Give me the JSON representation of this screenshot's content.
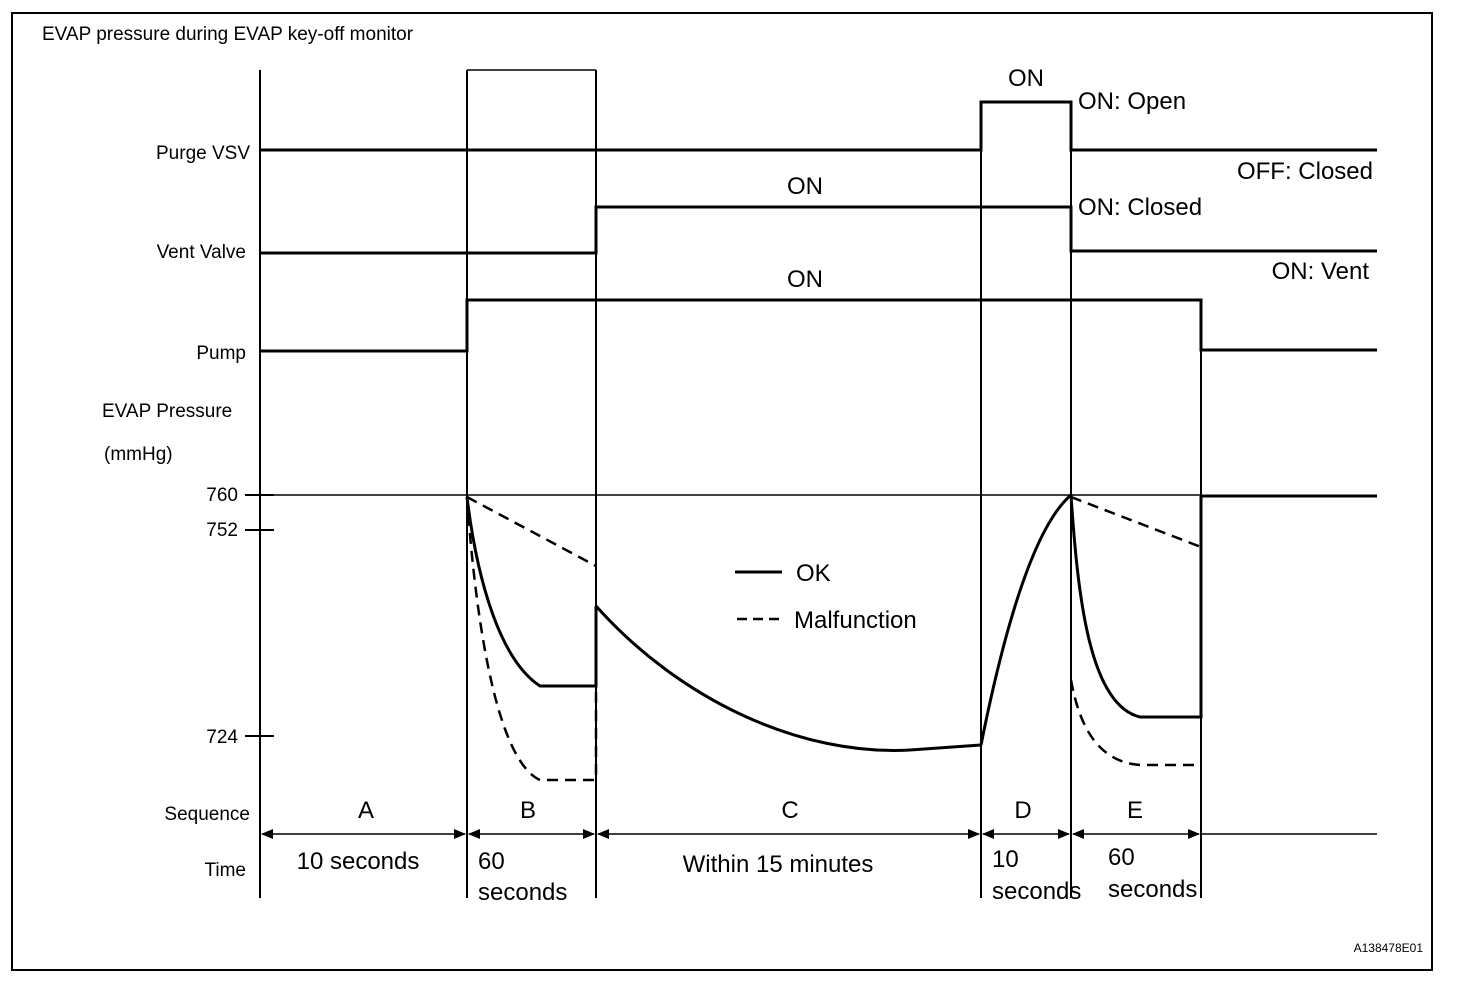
{
  "title": "EVAP pressure during EVAP key-off monitor",
  "signals": {
    "purge_vsv": "Purge VSV",
    "vent_valve": "Vent Valve",
    "pump": "Pump",
    "evap_pressure": "EVAP Pressure",
    "unit": "(mmHg)"
  },
  "y_axis": {
    "ticks": [
      "760",
      "752",
      "724"
    ]
  },
  "state_labels": {
    "purge_on": "ON",
    "purge_on_open": "ON: Open",
    "purge_off_closed": "OFF: Closed",
    "vent_on": "ON",
    "vent_on_closed": "ON: Closed",
    "vent_on_vent": "ON: Vent",
    "pump_on": "ON"
  },
  "legend": {
    "ok": "OK",
    "malfunction": "Malfunction"
  },
  "sequence_label": "Sequence",
  "time_label": "Time",
  "phases": [
    {
      "name": "A",
      "time_line1": "10 seconds",
      "time_line2": ""
    },
    {
      "name": "B",
      "time_line1": "60",
      "time_line2": "seconds"
    },
    {
      "name": "C",
      "time_line1": "Within 15 minutes",
      "time_line2": ""
    },
    {
      "name": "D",
      "time_line1": "10",
      "time_line2": "seconds"
    },
    {
      "name": "E",
      "time_line1": "60",
      "time_line2": "seconds"
    }
  ],
  "figure_id": "A138478E01"
}
